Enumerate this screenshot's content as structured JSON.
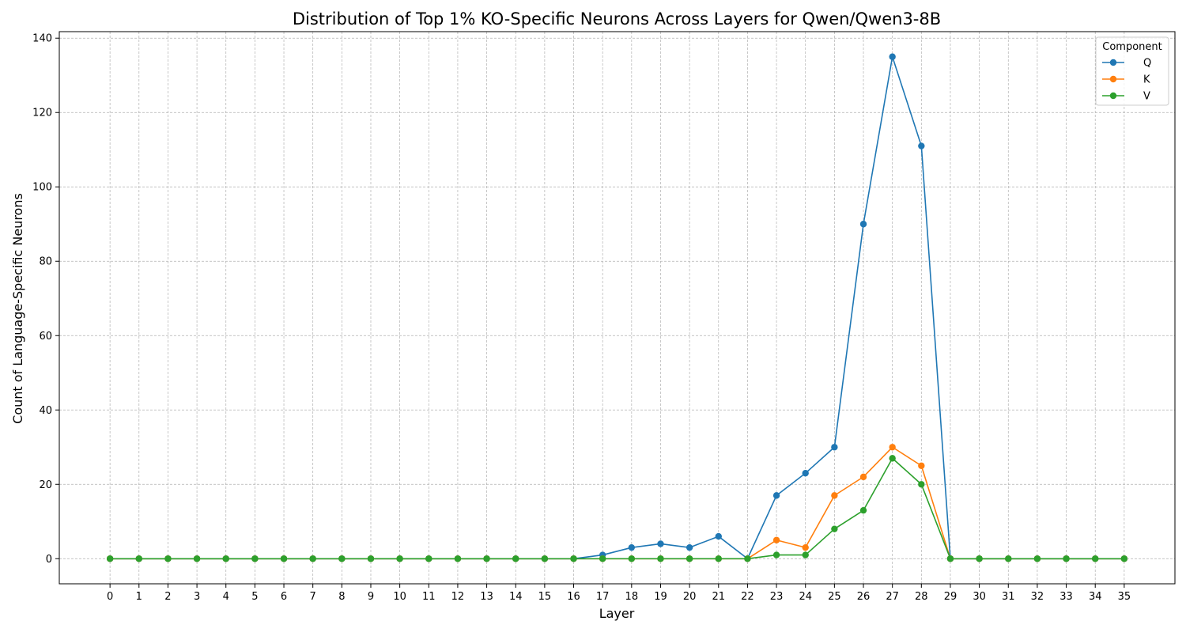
{
  "chart_data": {
    "type": "line",
    "title": "Distribution of Top 1% KO-Specific Neurons Across Layers for Qwen/Qwen3-8B",
    "xlabel": "Layer",
    "ylabel": "Count of Language-Specific Neurons",
    "x": [
      0,
      1,
      2,
      3,
      4,
      5,
      6,
      7,
      8,
      9,
      10,
      11,
      12,
      13,
      14,
      15,
      16,
      17,
      18,
      19,
      20,
      21,
      22,
      23,
      24,
      25,
      26,
      27,
      28,
      29,
      30,
      31,
      32,
      33,
      34,
      35
    ],
    "x_tick_labels": [
      "0",
      "1",
      "2",
      "3",
      "4",
      "5",
      "6",
      "7",
      "8",
      "9",
      "10",
      "11",
      "12",
      "13",
      "14",
      "15",
      "16",
      "17",
      "18",
      "19",
      "20",
      "21",
      "22",
      "23",
      "24",
      "25",
      "26",
      "27",
      "28",
      "29",
      "30",
      "31",
      "32",
      "33",
      "34",
      "35"
    ],
    "xlim": [
      -1.75,
      36.75
    ],
    "ylim": [
      -6.75,
      141.75
    ],
    "y_ticks": [
      0,
      20,
      40,
      60,
      80,
      100,
      120,
      140
    ],
    "y_tick_labels": [
      "0",
      "20",
      "40",
      "60",
      "80",
      "100",
      "120",
      "140"
    ],
    "grid": true,
    "legend": {
      "title": "Component",
      "placement": "top-right"
    },
    "series": [
      {
        "name": "Q",
        "color": "#1f77b4",
        "values": [
          0,
          0,
          0,
          0,
          0,
          0,
          0,
          0,
          0,
          0,
          0,
          0,
          0,
          0,
          0,
          0,
          0,
          1,
          3,
          4,
          3,
          6,
          0,
          17,
          23,
          30,
          90,
          135,
          111,
          0,
          0,
          0,
          0,
          0,
          0,
          0
        ]
      },
      {
        "name": "K",
        "color": "#ff7f0e",
        "values": [
          0,
          0,
          0,
          0,
          0,
          0,
          0,
          0,
          0,
          0,
          0,
          0,
          0,
          0,
          0,
          0,
          0,
          0,
          0,
          0,
          0,
          0,
          0,
          5,
          3,
          17,
          22,
          30,
          25,
          0,
          0,
          0,
          0,
          0,
          0,
          0
        ]
      },
      {
        "name": "V",
        "color": "#2ca02c",
        "values": [
          0,
          0,
          0,
          0,
          0,
          0,
          0,
          0,
          0,
          0,
          0,
          0,
          0,
          0,
          0,
          0,
          0,
          0,
          0,
          0,
          0,
          0,
          0,
          1,
          1,
          8,
          13,
          27,
          20,
          0,
          0,
          0,
          0,
          0,
          0,
          0
        ]
      }
    ]
  }
}
